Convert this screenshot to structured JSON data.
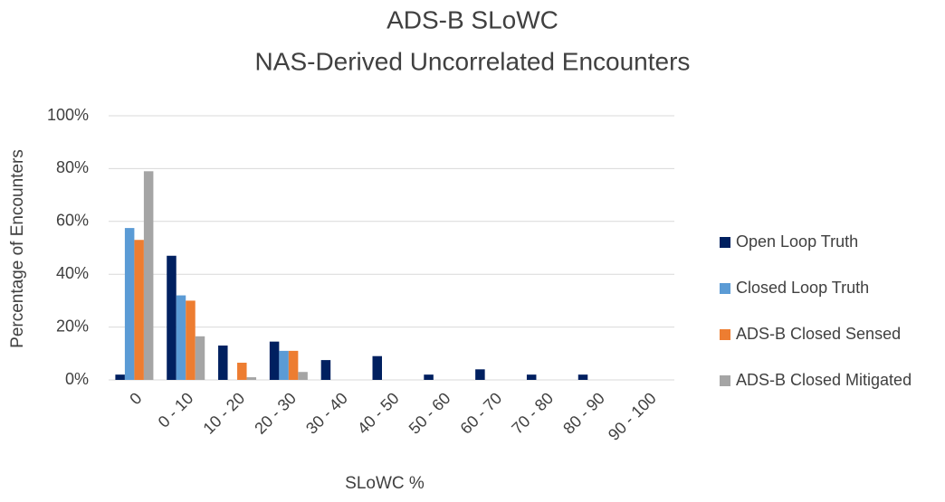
{
  "chart_data": {
    "type": "bar",
    "title": "ADS-B SLoWC",
    "subtitle": "NAS-Derived Uncorrelated Encounters",
    "x_label": "SLoWC %",
    "y_label": "Percentage of Encounters",
    "categories": [
      "0",
      "0 - 10",
      "10 - 20",
      "20 - 30",
      "30 - 40",
      "40 - 50",
      "50 - 60",
      "60 - 70",
      "70 - 80",
      "80 - 90",
      "90 - 100"
    ],
    "series": [
      {
        "name": "Open Loop Truth",
        "color": "#002060",
        "values": [
          2,
          47,
          13,
          14.5,
          7.5,
          9,
          2,
          4,
          2,
          2,
          0
        ]
      },
      {
        "name": "Closed Loop Truth",
        "color": "#5b9bd5",
        "values": [
          57.5,
          32,
          0,
          11,
          0,
          0,
          0,
          0,
          0,
          0,
          0
        ]
      },
      {
        "name": "ADS-B Closed Sensed",
        "color": "#ed7d31",
        "values": [
          53,
          30,
          6.5,
          11,
          0,
          0,
          0,
          0,
          0,
          0,
          0
        ]
      },
      {
        "name": "ADS-B Closed Mitigated",
        "color": "#a5a5a5",
        "values": [
          79,
          16.5,
          1,
          3,
          0,
          0,
          0,
          0,
          0,
          0,
          0
        ]
      }
    ],
    "ylim": [
      0,
      100
    ],
    "yticks": [
      {
        "value": 0,
        "label": "0%"
      },
      {
        "value": 20,
        "label": "20%"
      },
      {
        "value": 40,
        "label": "40%"
      },
      {
        "value": 60,
        "label": "60%"
      },
      {
        "value": 80,
        "label": "80%"
      },
      {
        "value": 100,
        "label": "100%"
      }
    ],
    "grid": true,
    "legend": "right"
  }
}
